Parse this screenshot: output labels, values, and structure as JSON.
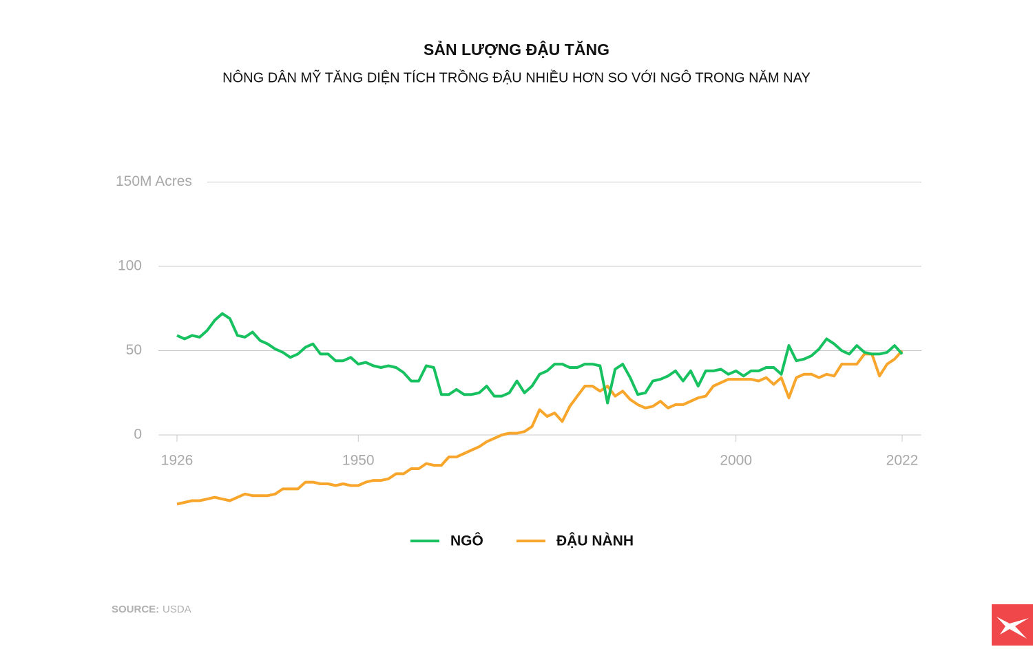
{
  "chart_data": {
    "type": "line",
    "title": "SẢN LƯỢNG ĐẬU TĂNG",
    "subtitle": "NÔNG DÂN MỸ TĂNG DIỆN TÍCH TRỒNG ĐẬU NHIỀU HƠN SO VỚI NGÔ TRONG NĂM NAY",
    "source_label": "SOURCE:",
    "source": "USDA",
    "x": [
      1926,
      1927,
      1928,
      1929,
      1930,
      1931,
      1932,
      1933,
      1934,
      1935,
      1936,
      1937,
      1938,
      1939,
      1940,
      1941,
      1942,
      1943,
      1944,
      1945,
      1946,
      1947,
      1948,
      1949,
      1950,
      1951,
      1952,
      1953,
      1954,
      1955,
      1956,
      1957,
      1958,
      1959,
      1960,
      1961,
      1962,
      1963,
      1964,
      1965,
      1966,
      1967,
      1968,
      1969,
      1970,
      1971,
      1972,
      1973,
      1974,
      1975,
      1976,
      1977,
      1978,
      1979,
      1980,
      1981,
      1982,
      1983,
      1984,
      1985,
      1986,
      1987,
      1988,
      1989,
      1990,
      1991,
      1992,
      1993,
      1994,
      1995,
      1996,
      1997,
      1998,
      1999,
      2000,
      2001,
      2002,
      2003,
      2004,
      2005,
      2006,
      2007,
      2008,
      2009,
      2010,
      2011,
      2012,
      2013,
      2014,
      2015,
      2016,
      2017,
      2018,
      2019,
      2020,
      2021,
      2022
    ],
    "series": [
      {
        "name": "NGÔ",
        "color": "#17c160",
        "values": [
          59,
          57,
          59,
          58,
          62,
          68,
          72,
          69,
          59,
          58,
          61,
          56,
          54,
          51,
          49,
          46,
          48,
          52,
          54,
          48,
          48,
          44,
          44,
          46,
          42,
          43,
          41,
          40,
          41,
          40,
          37,
          32,
          32,
          41,
          40,
          24,
          24,
          27,
          24,
          24,
          25,
          29,
          23,
          23,
          25,
          32,
          25,
          29,
          36,
          38,
          42,
          42,
          40,
          40,
          42,
          42,
          41,
          19,
          39,
          42,
          34,
          24,
          25,
          32,
          33,
          35,
          38,
          32,
          38,
          29,
          38,
          38,
          39,
          36,
          38,
          35,
          38,
          38,
          40,
          40,
          36,
          53,
          44,
          45,
          47,
          51,
          57,
          54,
          50,
          48,
          53,
          49,
          48,
          48,
          49,
          53,
          48
        ]
      },
      {
        "name": "ĐẬU NÀNH",
        "color": "#f8a52b",
        "values": [
          -41,
          -40,
          -39,
          -39,
          -38,
          -37,
          -38,
          -39,
          -37,
          -35,
          -36,
          -36,
          -36,
          -35,
          -32,
          -32,
          -32,
          -28,
          -28,
          -29,
          -29,
          -30,
          -29,
          -30,
          -30,
          -28,
          -27,
          -27,
          -26,
          -23,
          -23,
          -20,
          -20,
          -17,
          -18,
          -18,
          -13,
          -13,
          -11,
          -9,
          -7,
          -4,
          -2,
          0,
          1,
          1,
          2,
          5,
          15,
          11,
          13,
          8,
          17,
          23,
          29,
          29,
          26,
          29,
          23,
          26,
          21,
          18,
          16,
          17,
          20,
          16,
          18,
          18,
          20,
          22,
          23,
          29,
          31,
          33,
          33,
          33,
          33,
          32,
          34,
          30,
          34,
          22,
          34,
          36,
          36,
          34,
          36,
          35,
          42,
          42,
          42,
          48,
          48,
          35,
          42,
          45,
          50
        ]
      }
    ],
    "xlim": [
      1926,
      2022
    ],
    "xticks": [
      1926,
      1950,
      2000,
      2022
    ],
    "ylim": [
      -45,
      150
    ],
    "yticks": [
      0,
      50,
      100,
      {
        "value": 150,
        "label": "150M Acres"
      }
    ],
    "grid": true
  }
}
